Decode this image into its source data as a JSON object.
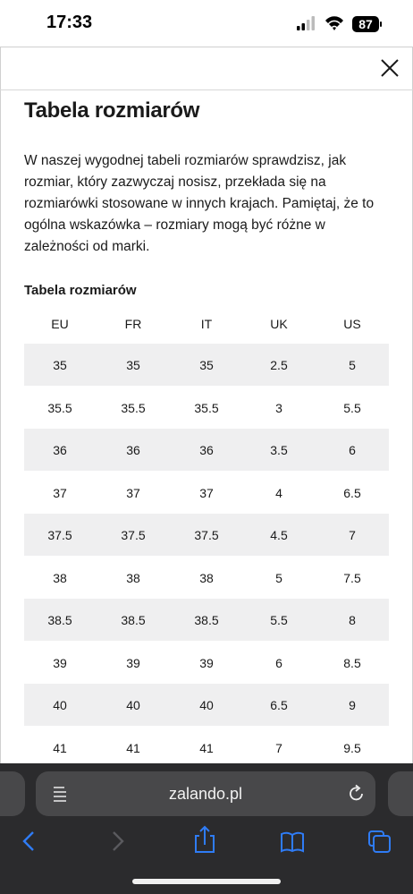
{
  "status_bar": {
    "time": "17:33",
    "battery": "87"
  },
  "modal": {
    "title": "Tabela rozmiarów",
    "description": [
      "W naszej wygodnej tabeli rozmiarów sprawdzisz, jak",
      "rozmiar, który zazwyczaj nosisz, przekłada się na",
      "rozmiarówki stosowane w innych krajach. Pamiętaj, że to",
      "ogólna wskazówka – rozmiary mogą być różne w",
      "zależności od marki."
    ],
    "table": {
      "caption": "Tabela rozmiarów",
      "headers": [
        "EU",
        "FR",
        "IT",
        "UK",
        "US"
      ],
      "rows": [
        [
          "35",
          "35",
          "35",
          "2.5",
          "5"
        ],
        [
          "35.5",
          "35.5",
          "35.5",
          "3",
          "5.5"
        ],
        [
          "36",
          "36",
          "36",
          "3.5",
          "6"
        ],
        [
          "37",
          "37",
          "37",
          "4",
          "6.5"
        ],
        [
          "37.5",
          "37.5",
          "37.5",
          "4.5",
          "7"
        ],
        [
          "38",
          "38",
          "38",
          "5",
          "7.5"
        ],
        [
          "38.5",
          "38.5",
          "38.5",
          "5.5",
          "8"
        ],
        [
          "39",
          "39",
          "39",
          "6",
          "8.5"
        ],
        [
          "40",
          "40",
          "40",
          "6.5",
          "9"
        ],
        [
          "41",
          "41",
          "41",
          "7",
          "9.5"
        ]
      ]
    }
  },
  "browser": {
    "url": "zalando.pl"
  }
}
